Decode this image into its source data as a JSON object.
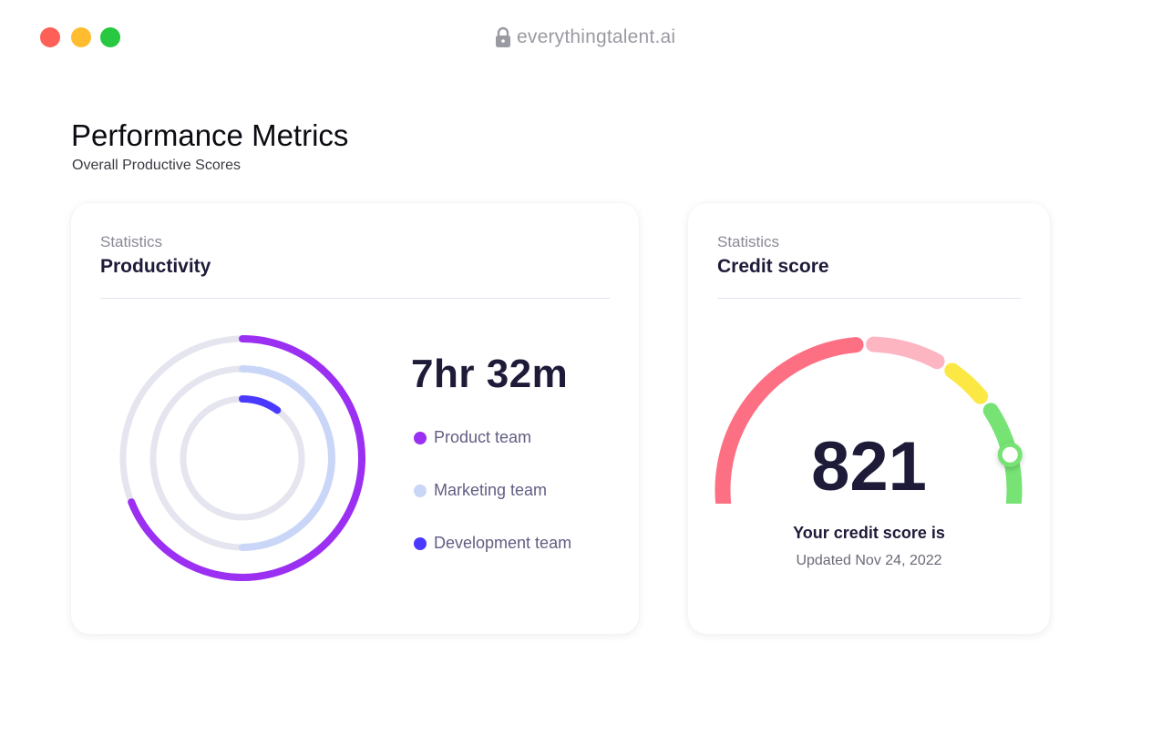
{
  "window": {
    "url": "everythingtalent.ai",
    "controls": [
      "close",
      "minimize",
      "maximize"
    ],
    "lock_icon": "lock-icon"
  },
  "header": {
    "title": "Performance Metrics",
    "subtitle": "Overall Productive Scores"
  },
  "productivity": {
    "eyebrow": "Statistics",
    "title": "Productivity",
    "total_time": "7hr 32m",
    "track_color": "#e5e5ef",
    "teams": [
      {
        "label": "Product team",
        "color": "#9b2ff2",
        "fraction": 0.69
      },
      {
        "label": "Marketing team",
        "color": "#c9d6f7",
        "fraction": 0.5
      },
      {
        "label": "Development team",
        "color": "#4a3aff",
        "fraction": 0.1
      }
    ]
  },
  "credit": {
    "eyebrow": "Statistics",
    "title": "Credit score",
    "score": "821",
    "caption": "Your credit score is",
    "updated": "Updated Nov 24, 2022",
    "segment_colors": [
      "#fd7083",
      "#fdb5c2",
      "#fbe845",
      "#76e374"
    ],
    "indicator_fraction": 0.88
  }
}
